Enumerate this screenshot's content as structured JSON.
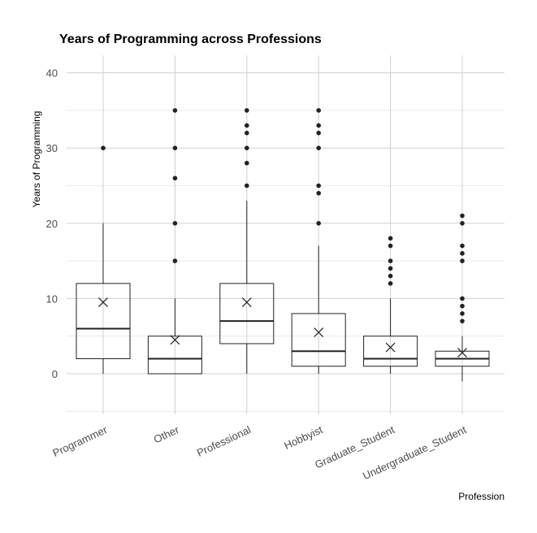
{
  "chart_data": {
    "type": "box",
    "title": "Years of Programming across Professions",
    "xlabel": "Profession",
    "ylabel": "Years of Programming",
    "ylim": [
      -5,
      40
    ],
    "yticks": [
      0,
      10,
      20,
      30,
      40
    ],
    "grid": true,
    "categories": [
      "Programmer",
      "Other",
      "Professional",
      "Hobbyist",
      "Graduate_Student",
      "Undergraduate_Student"
    ],
    "boxes": [
      {
        "category": "Programmer",
        "whisker_low": 0,
        "q1": 2,
        "median": 6,
        "q3": 12,
        "whisker_high": 20,
        "mean": 9.5,
        "outliers": [
          30
        ]
      },
      {
        "category": "Other",
        "whisker_low": 0,
        "q1": 0,
        "median": 2,
        "q3": 5,
        "whisker_high": 10,
        "mean": 4.5,
        "outliers": [
          15,
          20,
          26,
          30,
          35
        ]
      },
      {
        "category": "Professional",
        "whisker_low": 0,
        "q1": 4,
        "median": 7,
        "q3": 12,
        "whisker_high": 23,
        "mean": 9.5,
        "outliers": [
          25,
          28,
          30,
          32,
          33,
          35
        ]
      },
      {
        "category": "Hobbyist",
        "whisker_low": 0,
        "q1": 1,
        "median": 3,
        "q3": 8,
        "whisker_high": 17,
        "mean": 5.5,
        "outliers": [
          20,
          24,
          25,
          30,
          32,
          33,
          35
        ]
      },
      {
        "category": "Graduate_Student",
        "whisker_low": 0,
        "q1": 1,
        "median": 2,
        "q3": 5,
        "whisker_high": 10,
        "mean": 3.5,
        "outliers": [
          12,
          13,
          14,
          15,
          17,
          18
        ]
      },
      {
        "category": "Undergraduate_Student",
        "whisker_low": -1,
        "q1": 1,
        "median": 2,
        "q3": 3,
        "whisker_high": 5,
        "mean": 2.8,
        "outliers": [
          7,
          8,
          9,
          10,
          15,
          16,
          17,
          20,
          21
        ]
      }
    ]
  }
}
